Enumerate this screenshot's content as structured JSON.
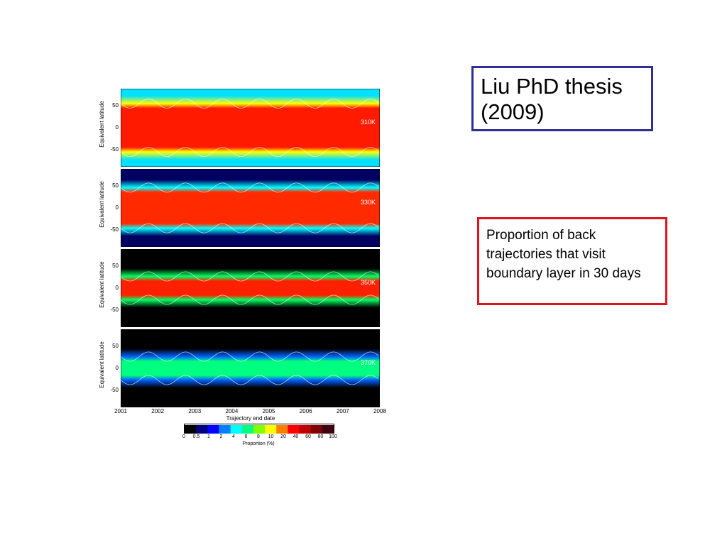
{
  "title_box": {
    "line1": "Liu PhD thesis",
    "line2": "(2009)"
  },
  "caption_box": {
    "text": "Proportion of back trajectories that visit boundary layer in 30 days"
  },
  "colors": {
    "title_border": "#2e3192",
    "caption_border": "#e0141c"
  },
  "chart_data": {
    "type": "heatmap",
    "xlabel": "Trajectory end date",
    "x_ticks": [
      "2001",
      "2002",
      "2003",
      "2004",
      "2005",
      "2006",
      "2007",
      "2008"
    ],
    "xlim": [
      2001,
      2008
    ],
    "ylabel": "Equivalent latitude",
    "y_ticks": [
      "50",
      "0",
      "-50"
    ],
    "ylim": [
      -90,
      90
    ],
    "panels": [
      {
        "label": "310K",
        "seasonal_cycle": true
      },
      {
        "label": "330K",
        "seasonal_cycle": true
      },
      {
        "label": "350K",
        "seasonal_cycle": true
      },
      {
        "label": "370K",
        "seasonal_cycle": true
      }
    ],
    "colorbar": {
      "label": "Proportion (%)",
      "ticks": [
        "0",
        "0.5",
        "1",
        "2",
        "4",
        "6",
        "8",
        "10",
        "20",
        "40",
        "60",
        "80",
        "100"
      ],
      "colors": [
        "#000000",
        "#000080",
        "#0000ff",
        "#0080ff",
        "#00ffff",
        "#00ff80",
        "#80ff00",
        "#ffff00",
        "#ff8000",
        "#ff0000",
        "#c00000",
        "#800000",
        "#400010"
      ]
    }
  }
}
